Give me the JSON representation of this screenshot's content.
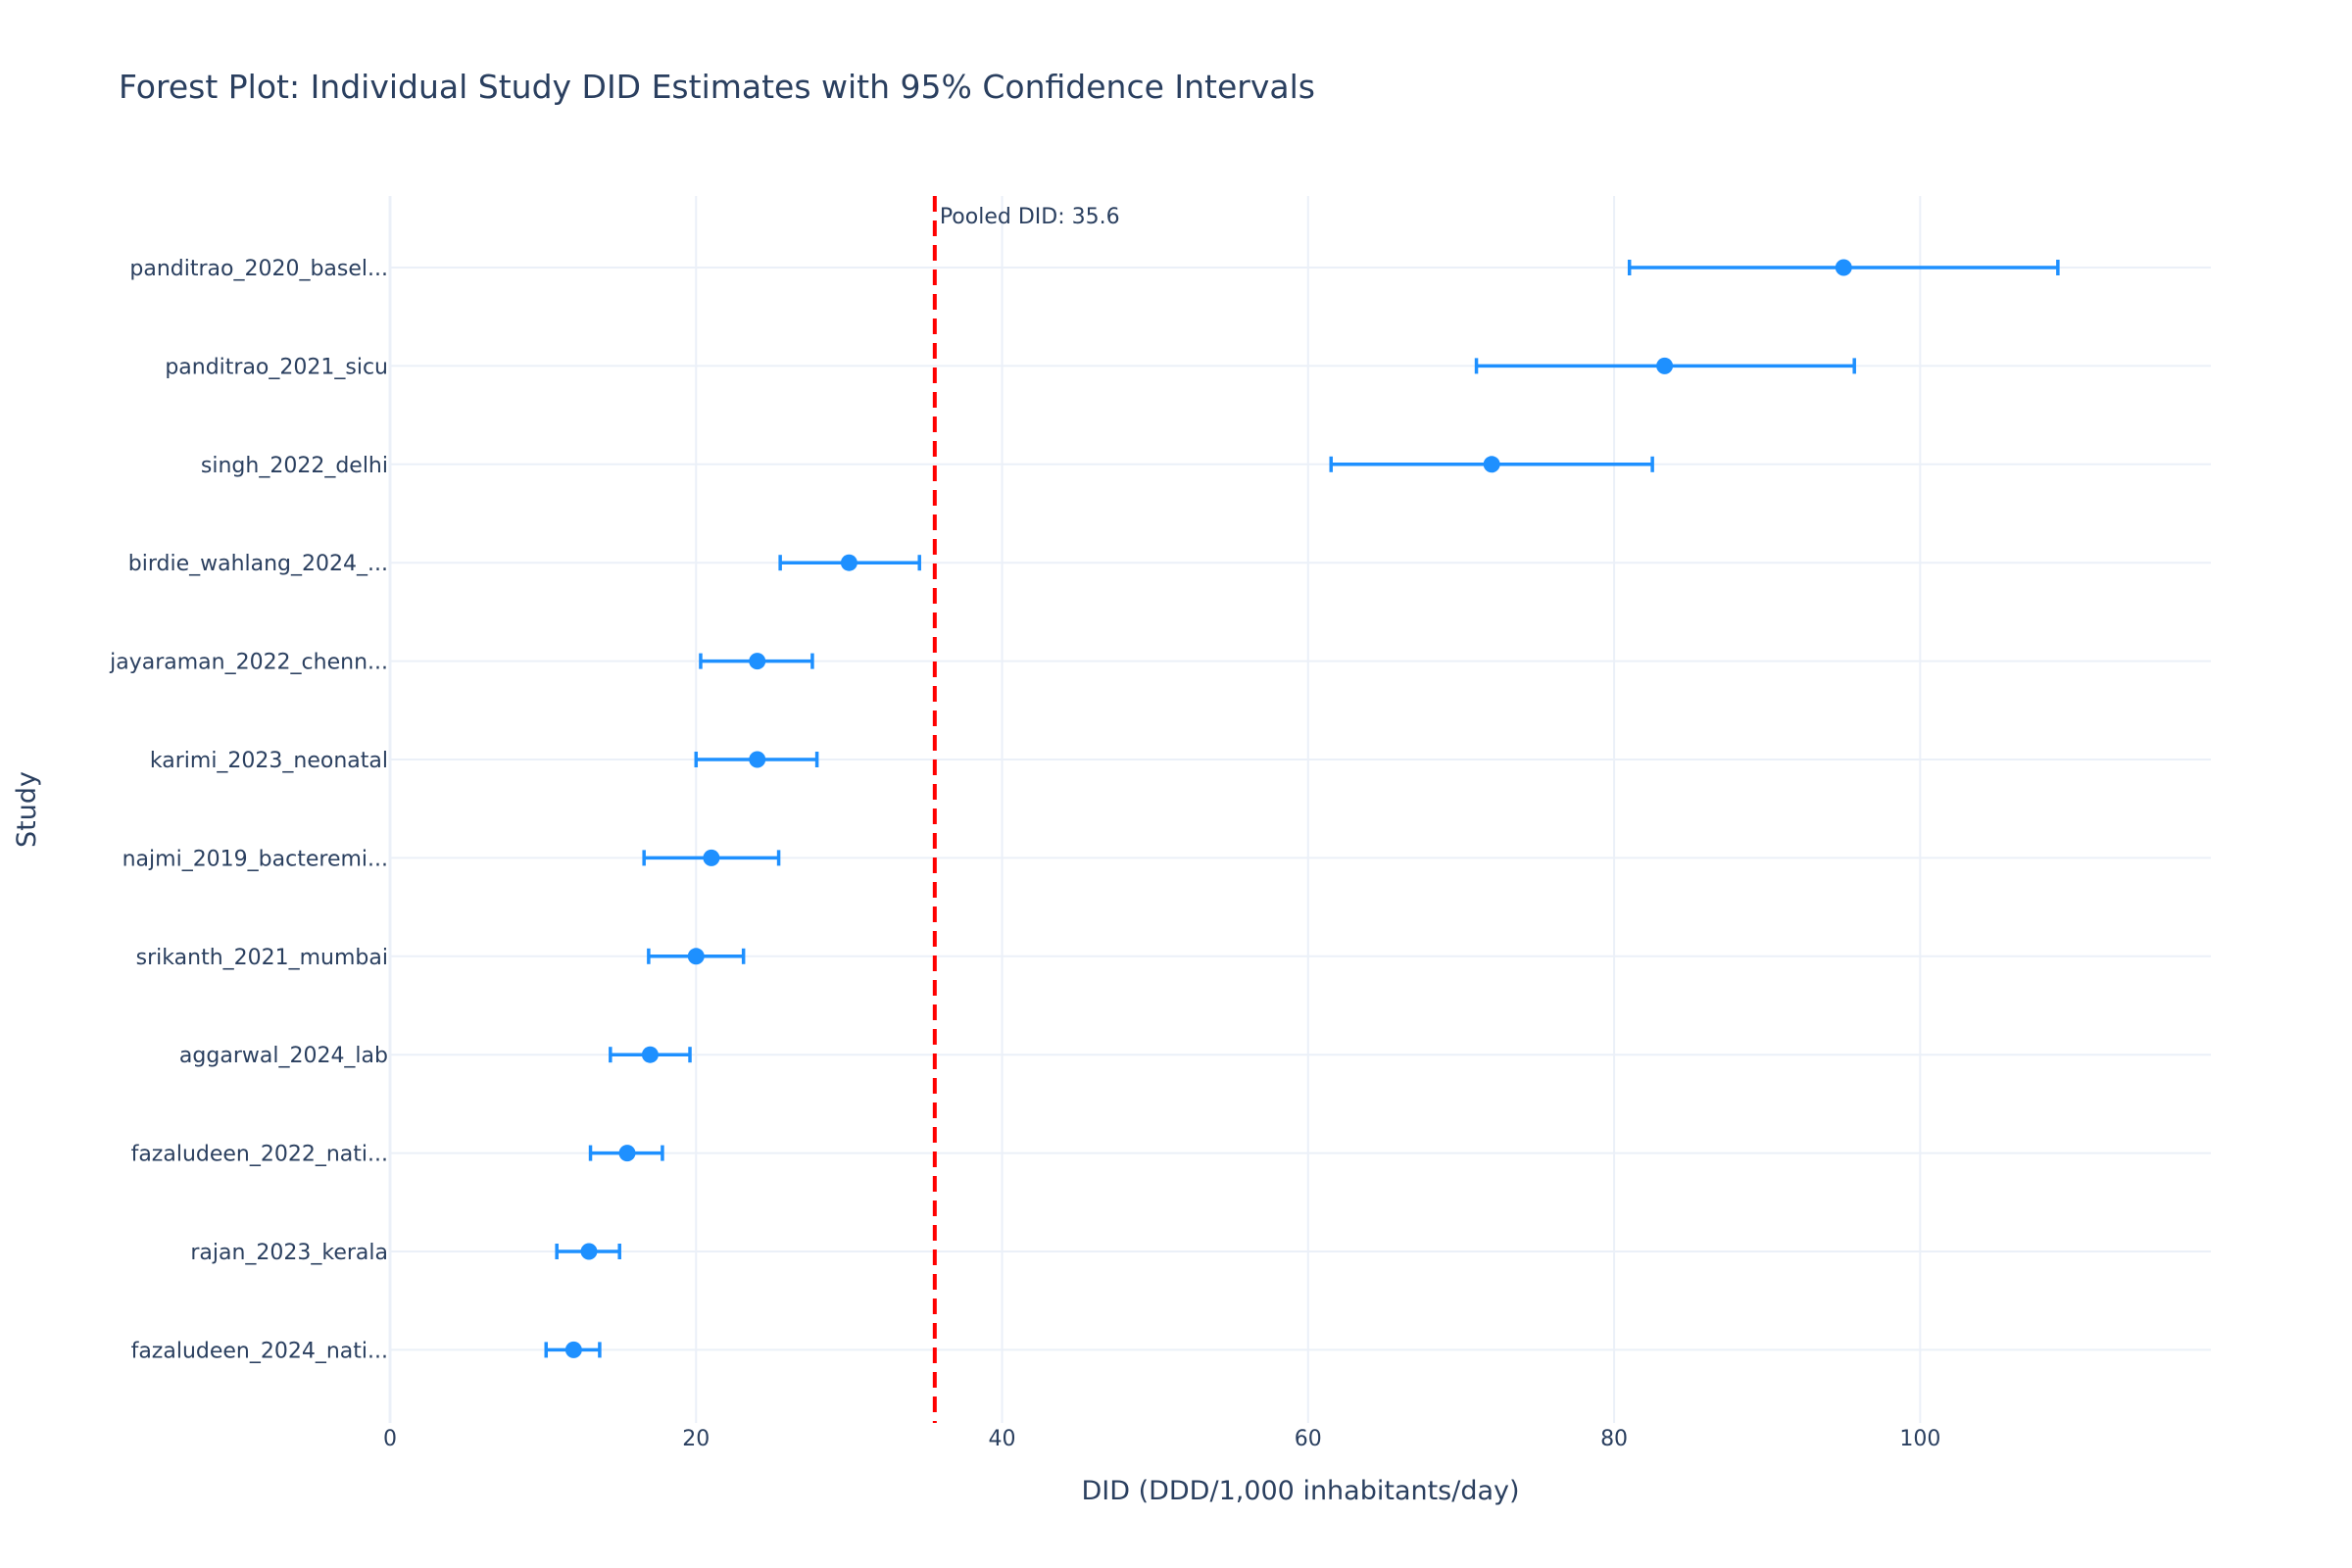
{
  "chart_data": {
    "type": "scatter",
    "title": "Forest Plot: Individual Study DID Estimates with 95% Confidence Intervals",
    "xlabel": "DID (DDD/1,000 inhabitants/day)",
    "ylabel": "Study",
    "xlim": [
      0,
      119
    ],
    "x_ticks": [
      0,
      20,
      40,
      60,
      80,
      100
    ],
    "grid": true,
    "legend": "none",
    "marker_color": "#1e90ff",
    "reference_line": {
      "x": 35.6,
      "label": "Pooled DID: 35.6",
      "color": "#ff0000",
      "style": "dashed"
    },
    "studies": [
      {
        "label": "panditrao_2020_basel...",
        "estimate": 95.0,
        "ci_low": 81.0,
        "ci_high": 109.0
      },
      {
        "label": "panditrao_2021_sicu",
        "estimate": 83.3,
        "ci_low": 71.0,
        "ci_high": 95.7
      },
      {
        "label": "singh_2022_delhi",
        "estimate": 72.0,
        "ci_low": 61.5,
        "ci_high": 82.5
      },
      {
        "label": "birdie_wahlang_2024_...",
        "estimate": 30.0,
        "ci_low": 25.5,
        "ci_high": 34.6
      },
      {
        "label": "jayaraman_2022_chenn...",
        "estimate": 24.0,
        "ci_low": 20.3,
        "ci_high": 27.6
      },
      {
        "label": "karimi_2023_neonatal",
        "estimate": 24.0,
        "ci_low": 20.0,
        "ci_high": 27.9
      },
      {
        "label": "najmi_2019_bacteremi...",
        "estimate": 21.0,
        "ci_low": 16.6,
        "ci_high": 25.4
      },
      {
        "label": "srikanth_2021_mumbai",
        "estimate": 20.0,
        "ci_low": 16.9,
        "ci_high": 23.1
      },
      {
        "label": "aggarwal_2024_lab",
        "estimate": 17.0,
        "ci_low": 14.4,
        "ci_high": 19.6
      },
      {
        "label": "fazaludeen_2022_nati...",
        "estimate": 15.5,
        "ci_low": 13.1,
        "ci_high": 17.8
      },
      {
        "label": "rajan_2023_kerala",
        "estimate": 13.0,
        "ci_low": 10.9,
        "ci_high": 15.0
      },
      {
        "label": "fazaludeen_2024_nati...",
        "estimate": 12.0,
        "ci_low": 10.2,
        "ci_high": 13.7
      }
    ]
  }
}
